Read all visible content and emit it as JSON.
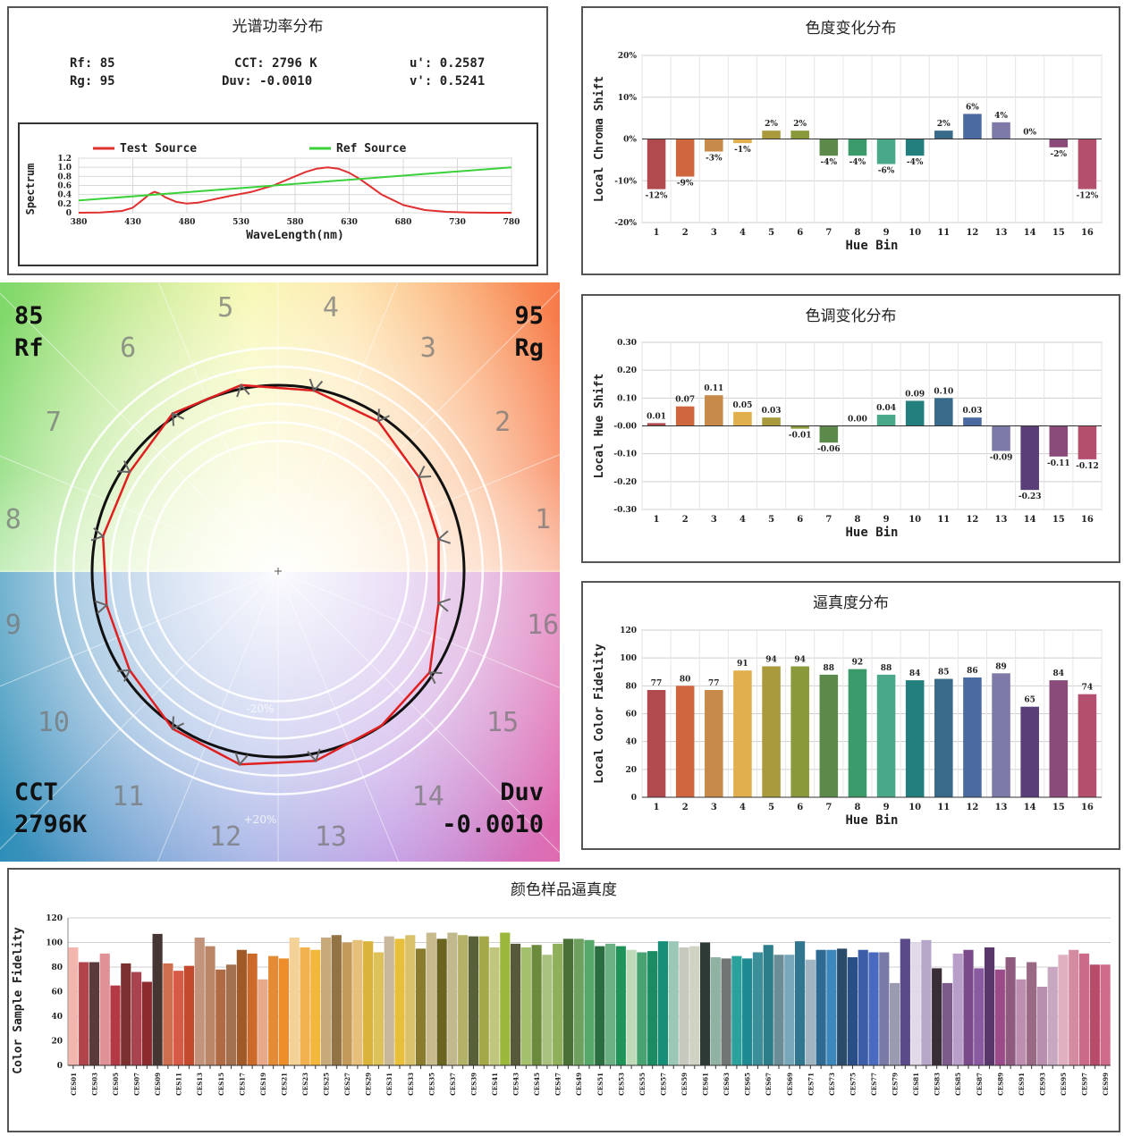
{
  "spd_panel": {
    "title": "光谱功率分布",
    "metrics": {
      "rf": "Rf: 85",
      "rg": "Rg: 95",
      "cct": "CCT: 2796 K",
      "duv": "Duv: -0.0010",
      "u": "u': 0.2587",
      "v": "v': 0.5241"
    }
  },
  "chroma_panel": {
    "title": "色度变化分布"
  },
  "hue_panel": {
    "title": "色调变化分布"
  },
  "fidelity_panel": {
    "title": "逼真度分布"
  },
  "sample_panel": {
    "title": "颜色样品逼真度"
  },
  "polar_panel": {
    "rf_value": "85",
    "rf_label": "Rf",
    "rg_value": "95",
    "rg_label": "Rg",
    "cct_label": "CCT",
    "cct_value": "2796K",
    "duv_label": "Duv",
    "duv_value": "-0.0010",
    "ring_minus": "-20%",
    "ring_plus": "+20%",
    "bin_numbers": [
      "1",
      "2",
      "3",
      "4",
      "5",
      "6",
      "7",
      "8",
      "9",
      "10",
      "11",
      "12",
      "13",
      "14",
      "15",
      "16"
    ]
  },
  "chart_data": [
    {
      "id": "spd",
      "type": "line",
      "xlabel": "WaveLength(nm)",
      "ylabel": "Spectrum",
      "xlim": [
        380,
        780
      ],
      "ylim": [
        0,
        1.2
      ],
      "xticks": [
        380,
        430,
        480,
        530,
        580,
        630,
        680,
        730,
        780
      ],
      "yticks": [
        0,
        0.2,
        0.4,
        0.6,
        0.8,
        1.0,
        1.2
      ],
      "ytick_labels": [
        "0",
        "0.2",
        "0.4",
        "0.6",
        "0.8",
        "1.0",
        "1.2"
      ],
      "legend": "top",
      "series": [
        {
          "name": "Test Source",
          "color": "#e03030",
          "x": [
            380,
            400,
            420,
            430,
            440,
            445,
            450,
            455,
            460,
            470,
            480,
            490,
            500,
            520,
            540,
            560,
            580,
            590,
            600,
            610,
            620,
            630,
            640,
            650,
            660,
            680,
            700,
            720,
            740,
            760,
            780
          ],
          "y": [
            0,
            0.005,
            0.04,
            0.11,
            0.3,
            0.4,
            0.46,
            0.42,
            0.34,
            0.24,
            0.2,
            0.22,
            0.27,
            0.37,
            0.46,
            0.6,
            0.8,
            0.9,
            0.97,
            1.0,
            0.97,
            0.88,
            0.74,
            0.57,
            0.4,
            0.17,
            0.06,
            0.02,
            0.005,
            0,
            0
          ]
        },
        {
          "name": "Ref Source",
          "color": "#3ad13a",
          "x": [
            380,
            780
          ],
          "y": [
            0.27,
            1.0
          ]
        }
      ]
    },
    {
      "id": "chroma",
      "type": "bar",
      "xlabel": "Hue Bin",
      "ylabel": "Local Chroma Shift",
      "ylim": [
        -20,
        20
      ],
      "yticks": [
        -20,
        -10,
        0,
        10,
        20
      ],
      "ytick_labels": [
        "-20%",
        "-10%",
        "0%",
        "10%",
        "20%"
      ],
      "categories": [
        "1",
        "2",
        "3",
        "4",
        "5",
        "6",
        "7",
        "8",
        "9",
        "10",
        "11",
        "12",
        "13",
        "14",
        "15",
        "16"
      ],
      "values": [
        -12,
        -9,
        -3,
        -1,
        2,
        2,
        -4,
        -4,
        -6,
        -4,
        2,
        6,
        4,
        0,
        -2,
        -12
      ],
      "labels": [
        "-12%",
        "-9%",
        "-3%",
        "-1%",
        "2%",
        "2%",
        "-4%",
        "-4%",
        "-6%",
        "-4%",
        "2%",
        "6%",
        "4%",
        "0%",
        "-2%",
        "-12%"
      ]
    },
    {
      "id": "hue",
      "type": "bar",
      "xlabel": "Hue Bin",
      "ylabel": "Local Hue Shift",
      "ylim": [
        -0.3,
        0.3
      ],
      "yticks": [
        -0.3,
        -0.2,
        -0.1,
        0,
        0.1,
        0.2,
        0.3
      ],
      "ytick_labels": [
        "-0.30",
        "-0.20",
        "-0.10",
        "-0.00",
        "0.10",
        "0.20",
        "0.30"
      ],
      "categories": [
        "1",
        "2",
        "3",
        "4",
        "5",
        "6",
        "7",
        "8",
        "9",
        "10",
        "11",
        "12",
        "13",
        "14",
        "15",
        "16"
      ],
      "values": [
        0.01,
        0.07,
        0.11,
        0.05,
        0.03,
        -0.01,
        -0.06,
        0.0,
        0.04,
        0.09,
        0.1,
        0.03,
        -0.09,
        -0.23,
        -0.11,
        -0.12
      ],
      "labels": [
        "0.01",
        "0.07",
        "0.11",
        "0.05",
        "0.03",
        "-0.01",
        "-0.06",
        "0.00",
        "0.04",
        "0.09",
        "0.10",
        "0.03",
        "-0.09",
        "-0.23",
        "-0.11",
        "-0.12"
      ]
    },
    {
      "id": "fidelity",
      "type": "bar",
      "xlabel": "Hue Bin",
      "ylabel": "Local Color Fidelity",
      "ylim": [
        0,
        120
      ],
      "yticks": [
        0,
        20,
        40,
        60,
        80,
        100,
        120
      ],
      "ytick_labels": [
        "0",
        "20",
        "40",
        "60",
        "80",
        "100",
        "120"
      ],
      "categories": [
        "1",
        "2",
        "3",
        "4",
        "5",
        "6",
        "7",
        "8",
        "9",
        "10",
        "11",
        "12",
        "13",
        "14",
        "15",
        "16"
      ],
      "values": [
        77,
        80,
        77,
        91,
        94,
        94,
        88,
        92,
        88,
        84,
        85,
        86,
        89,
        65,
        84,
        74
      ],
      "labels": [
        "77",
        "80",
        "77",
        "91",
        "94",
        "94",
        "88",
        "92",
        "88",
        "84",
        "85",
        "86",
        "89",
        "65",
        "84",
        "74"
      ]
    },
    {
      "id": "samples",
      "type": "bar",
      "ylabel": "Color Sample Fidelity",
      "ylim": [
        0,
        120
      ],
      "yticks": [
        0,
        20,
        40,
        60,
        80,
        100,
        120
      ],
      "ytick_labels": [
        "0",
        "20",
        "40",
        "60",
        "80",
        "100",
        "120"
      ],
      "categories": [
        "CES01",
        "CES02",
        "CES03",
        "CES04",
        "CES05",
        "CES06",
        "CES07",
        "CES08",
        "CES09",
        "CES10",
        "CES11",
        "CES12",
        "CES13",
        "CES14",
        "CES15",
        "CES16",
        "CES17",
        "CES18",
        "CES19",
        "CES20",
        "CES21",
        "CES22",
        "CES23",
        "CES24",
        "CES25",
        "CES26",
        "CES27",
        "CES28",
        "CES29",
        "CES30",
        "CES31",
        "CES32",
        "CES33",
        "CES34",
        "CES35",
        "CES36",
        "CES37",
        "CES38",
        "CES39",
        "CES40",
        "CES41",
        "CES42",
        "CES43",
        "CES44",
        "CES45",
        "CES46",
        "CES47",
        "CES48",
        "CES49",
        "CES50",
        "CES51",
        "CES52",
        "CES53",
        "CES54",
        "CES55",
        "CES56",
        "CES57",
        "CES58",
        "CES59",
        "CES60",
        "CES61",
        "CES62",
        "CES63",
        "CES64",
        "CES65",
        "CES66",
        "CES67",
        "CES68",
        "CES69",
        "CES70",
        "CES71",
        "CES72",
        "CES73",
        "CES74",
        "CES75",
        "CES76",
        "CES77",
        "CES78",
        "CES79",
        "CES80",
        "CES81",
        "CES82",
        "CES83",
        "CES84",
        "CES85",
        "CES86",
        "CES87",
        "CES88",
        "CES89",
        "CES90",
        "CES91",
        "CES92",
        "CES93",
        "CES94",
        "CES95",
        "CES96",
        "CES97",
        "CES98",
        "CES99"
      ],
      "tick_labels": [
        "CES01",
        "",
        "CES03",
        "",
        "CES05",
        "",
        "CES07",
        "",
        "CES09",
        "",
        "CES11",
        "",
        "CES13",
        "",
        "CES15",
        "",
        "CES17",
        "",
        "CES19",
        "",
        "CES21",
        "",
        "CES23",
        "",
        "CES25",
        "",
        "CES27",
        "",
        "CES29",
        "",
        "CES31",
        "",
        "CES33",
        "",
        "CES35",
        "",
        "CES37",
        "",
        "CES39",
        "",
        "CES41",
        "",
        "CES43",
        "",
        "CES45",
        "",
        "CES47",
        "",
        "CES49",
        "",
        "CES51",
        "",
        "CES53",
        "",
        "CES55",
        "",
        "CES57",
        "",
        "CES59",
        "",
        "CES61",
        "",
        "CES63",
        "",
        "CES65",
        "",
        "CES67",
        "",
        "CES69",
        "",
        "CES71",
        "",
        "CES73",
        "",
        "CES75",
        "",
        "CES77",
        "",
        "CES79",
        "",
        "CES81",
        "",
        "CES83",
        "",
        "CES85",
        "",
        "CES87",
        "",
        "CES89",
        "",
        "CES91",
        "",
        "CES93",
        "",
        "CES95",
        "",
        "CES97",
        "",
        "CES99"
      ],
      "values": [
        96,
        84,
        84,
        91,
        65,
        83,
        76,
        68,
        107,
        83,
        77,
        81,
        104,
        97,
        78,
        82,
        94,
        91,
        70,
        89,
        87,
        104,
        96,
        94,
        104,
        106,
        100,
        102,
        101,
        92,
        105,
        103,
        106,
        95,
        108,
        103,
        108,
        106,
        105,
        105,
        96,
        108,
        99,
        96,
        98,
        90,
        99,
        103,
        103,
        102,
        97,
        99,
        97,
        94,
        92,
        93,
        101,
        101,
        96,
        97,
        100,
        88,
        87,
        89,
        87,
        92,
        98,
        90,
        90,
        101,
        86,
        94,
        94,
        95,
        88,
        94,
        92,
        92,
        67,
        103,
        100,
        102,
        79,
        67,
        91,
        94,
        79,
        96,
        78,
        88,
        70,
        84,
        64,
        80,
        90,
        94,
        91,
        82,
        82
      ],
      "colors": [
        "#f2b6ae",
        "#b0444a",
        "#5a3a3a",
        "#e09196",
        "#b33a45",
        "#7b3030",
        "#a8434f",
        "#8c2a2e",
        "#453634",
        "#cf6e4f",
        "#d65a46",
        "#c34a2d",
        "#c2947b",
        "#bb8568",
        "#b06a44",
        "#a37050",
        "#a05a28",
        "#cc6a2c",
        "#e8a88a",
        "#e48b36",
        "#ee8e2a",
        "#f4d197",
        "#f1b14f",
        "#f3b73c",
        "#c8aa7a",
        "#927444",
        "#c49a5a",
        "#e6c07a",
        "#d9b33b",
        "#ddc25a",
        "#c8b79a",
        "#e8bf3a",
        "#d8c16a",
        "#8a7c2e",
        "#c9ba8e",
        "#6b6420",
        "#c1b88d",
        "#b4b266",
        "#58603a",
        "#a5a846",
        "#c1c67e",
        "#9cb83a",
        "#575a3a",
        "#a3c06c",
        "#6c8a3c",
        "#aac27f",
        "#8fb05a",
        "#4a7038",
        "#6fa060",
        "#56a86a",
        "#2a6d40",
        "#6cb184",
        "#209458",
        "#bedab9",
        "#47a372",
        "#1b8c62",
        "#168e78",
        "#9bc7b6",
        "#c7c9be",
        "#d0d2c4",
        "#2e3a36",
        "#90b2a3",
        "#6f7674",
        "#2aa19a",
        "#1c8a90",
        "#3c8e98",
        "#2c7e8a",
        "#6c8c98",
        "#77a7b8",
        "#30768f",
        "#a0b4c1",
        "#2f6a93",
        "#3c88bc",
        "#2a4b6a",
        "#2a4e88",
        "#3c5ea8",
        "#4a6ac0",
        "#7a7aa8",
        "#9a9ab0",
        "#5a4a8a",
        "#e0dae8",
        "#b6a7c8",
        "#3a2e36",
        "#7c5a8a",
        "#b79fc9",
        "#7a4a8a",
        "#8a5aa0",
        "#58386a",
        "#9b4a8a",
        "#8e5a7e",
        "#be8eb0",
        "#9a6a84",
        "#b98fb0",
        "#c8a8c0",
        "#e0b0c0",
        "#d48a9f",
        "#cc6a8a",
        "#b84a6a",
        "#d06a8a"
      ]
    }
  ],
  "polar_data": {
    "bins": 16,
    "ref_radius": 1.0,
    "test_points": [
      {
        "bin": 1,
        "radius": 0.88
      },
      {
        "bin": 2,
        "radius": 0.91
      },
      {
        "bin": 3,
        "radius": 0.97
      },
      {
        "bin": 4,
        "radius": 0.99
      },
      {
        "bin": 5,
        "radius": 1.02
      },
      {
        "bin": 6,
        "radius": 1.02
      },
      {
        "bin": 7,
        "radius": 0.96
      },
      {
        "bin": 8,
        "radius": 0.96
      },
      {
        "bin": 9,
        "radius": 0.94
      },
      {
        "bin": 10,
        "radius": 0.96
      },
      {
        "bin": 11,
        "radius": 1.02
      },
      {
        "bin": 12,
        "radius": 1.06
      },
      {
        "bin": 13,
        "radius": 1.04
      },
      {
        "bin": 14,
        "radius": 1.0
      },
      {
        "bin": 15,
        "radius": 0.98
      },
      {
        "bin": 16,
        "radius": 0.88
      }
    ]
  },
  "bin_colors": [
    "#b04a4e",
    "#d0663e",
    "#c88a48",
    "#e1b04c",
    "#a99a3e",
    "#8a9a3a",
    "#5c8a4a",
    "#3a9a6a",
    "#4aa88a",
    "#237e7e",
    "#3a6a8a",
    "#4a6aa0",
    "#7e7aa8",
    "#5a3e78",
    "#8a4a7a",
    "#b4506e"
  ]
}
